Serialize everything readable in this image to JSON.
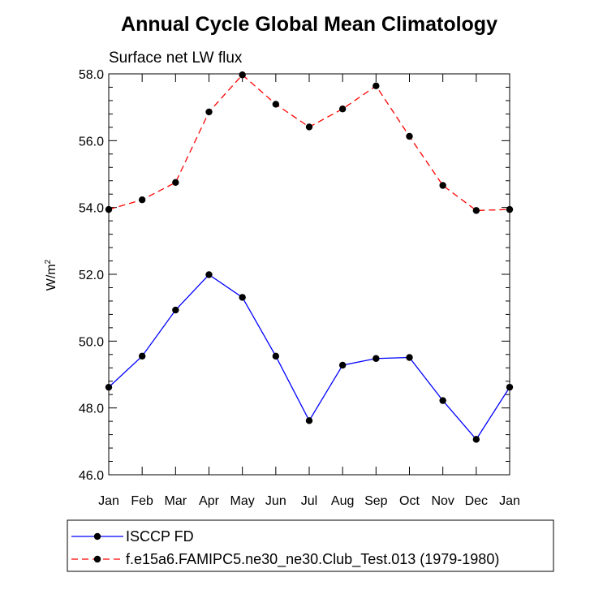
{
  "chart_data": {
    "type": "line",
    "title": "Annual Cycle Global Mean Climatology",
    "subtitle": "Surface net LW flux",
    "ylabel": "W/m",
    "ylabel_sup": "2",
    "xlabel": "",
    "categories": [
      "Jan",
      "Feb",
      "Mar",
      "Apr",
      "May",
      "Jun",
      "Jul",
      "Aug",
      "Sep",
      "Oct",
      "Nov",
      "Dec",
      "Jan"
    ],
    "ylim": [
      46.0,
      58.0
    ],
    "yticks": [
      "46.0",
      "48.0",
      "50.0",
      "52.0",
      "54.0",
      "56.0",
      "58.0"
    ],
    "grid": false,
    "legend_position": "bottom",
    "series": [
      {
        "name": "ISCCP FD",
        "color": "#0000ff",
        "line_style": "solid",
        "marker": "filled-circle",
        "values": [
          48.62,
          49.55,
          50.93,
          51.99,
          51.31,
          49.55,
          47.62,
          49.28,
          49.48,
          49.51,
          48.22,
          47.06,
          48.62
        ]
      },
      {
        "name": "f.e15a6.FAMIPC5.ne30_ne30.Club_Test.013 (1979-1980)",
        "color": "#ff0000",
        "line_style": "dashed",
        "marker": "filled-circle",
        "values": [
          53.94,
          54.23,
          54.75,
          56.86,
          57.97,
          57.09,
          56.41,
          56.95,
          57.64,
          56.13,
          54.66,
          53.91,
          53.94
        ]
      }
    ]
  }
}
